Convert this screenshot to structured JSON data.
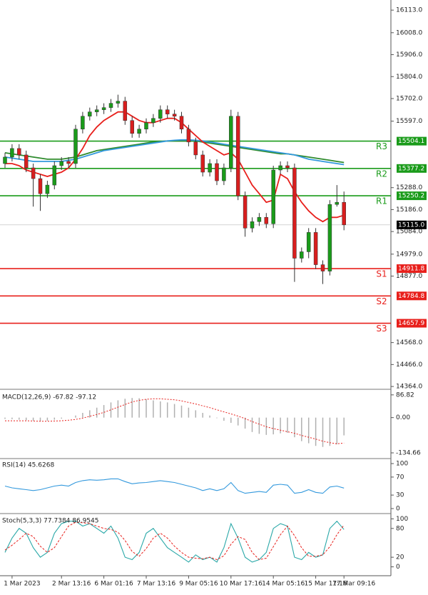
{
  "chart_data": [
    {
      "type": "candlestick",
      "categories": [
        null,
        "1 Mar 2023",
        null,
        null,
        null,
        null,
        null,
        null,
        "2 Mar 13:16",
        null,
        null,
        null,
        null,
        null,
        "6 Mar 01:16",
        null,
        null,
        null,
        null,
        null,
        "7 Mar 13:16",
        null,
        null,
        null,
        null,
        null,
        "9 Mar 05:16",
        null,
        null,
        null,
        null,
        null,
        "10 Mar 17:16",
        null,
        null,
        null,
        null,
        null,
        "14 Mar 05:16",
        null,
        null,
        null,
        null,
        null,
        "15 Mar 17:16",
        null,
        null,
        null,
        "17 Mar 09:16"
      ],
      "open": [
        15400,
        15430,
        15470,
        15440,
        15380,
        15330,
        15260,
        15300,
        15390,
        15410,
        15400,
        15560,
        15620,
        15640,
        15650,
        15660,
        15680,
        15690,
        15600,
        15540,
        15560,
        15590,
        15610,
        15650,
        15630,
        15620,
        15560,
        15500,
        15440,
        15360,
        15400,
        15320,
        15380,
        15620,
        15250,
        15100,
        15130,
        15150,
        15120,
        15370,
        15390,
        15380,
        14960,
        14990,
        15080,
        14930,
        14900,
        15210,
        15220
      ],
      "high": [
        15450,
        15490,
        15490,
        15460,
        15400,
        15350,
        15320,
        15410,
        15430,
        15430,
        15580,
        15640,
        15660,
        15670,
        15680,
        15700,
        15720,
        15710,
        15620,
        15580,
        15610,
        15630,
        15670,
        15670,
        15650,
        15640,
        15580,
        15520,
        15460,
        15420,
        15420,
        15400,
        15650,
        15640,
        15270,
        15150,
        15170,
        15170,
        15390,
        15410,
        15410,
        15400,
        15010,
        15100,
        15100,
        14950,
        15230,
        15300,
        15270
      ],
      "low": [
        15380,
        15410,
        15420,
        15360,
        15200,
        15180,
        15240,
        15280,
        15370,
        15380,
        15380,
        15540,
        15600,
        15620,
        15630,
        15640,
        15660,
        15580,
        15520,
        15520,
        15540,
        15570,
        15590,
        15610,
        15600,
        15540,
        15480,
        15420,
        15340,
        15340,
        15300,
        15300,
        15360,
        15230,
        15060,
        15080,
        15110,
        15100,
        15100,
        15350,
        15360,
        14850,
        14940,
        14960,
        14910,
        14840,
        14880,
        15200,
        15090
      ],
      "close": [
        15430,
        15470,
        15440,
        15380,
        15330,
        15260,
        15300,
        15390,
        15410,
        15400,
        15560,
        15620,
        15640,
        15650,
        15660,
        15680,
        15690,
        15600,
        15540,
        15560,
        15590,
        15610,
        15650,
        15630,
        15620,
        15560,
        15500,
        15440,
        15360,
        15400,
        15320,
        15380,
        15620,
        15250,
        15100,
        15130,
        15150,
        15120,
        15370,
        15390,
        15380,
        14960,
        14990,
        15080,
        14930,
        14900,
        15210,
        15220,
        15115
      ],
      "up_color": "#1a9b1a",
      "down_color": "#d81e1e",
      "moving_averages": [
        {
          "color": "#2e8b2e",
          "values": [
            15450,
            15445,
            15440,
            15435,
            15430,
            15425,
            15420,
            15420,
            15420,
            15425,
            15430,
            15440,
            15450,
            15460,
            15465,
            15470,
            15475,
            15480,
            15485,
            15490,
            15495,
            15500,
            15502,
            15505,
            15505,
            15505,
            15505,
            15505,
            15500,
            15495,
            15490,
            15485,
            15480,
            15475,
            15470,
            15465,
            15460,
            15455,
            15450,
            15445,
            15445,
            15440,
            15435,
            15430,
            15425,
            15420,
            15415,
            15410,
            15405
          ]
        },
        {
          "color": "#3399dd",
          "values": [
            15430,
            15425,
            15420,
            15415,
            15410,
            15410,
            15410,
            15410,
            15410,
            15415,
            15420,
            15430,
            15440,
            15450,
            15460,
            15465,
            15470,
            15475,
            15480,
            15485,
            15490,
            15495,
            15500,
            15505,
            15508,
            15510,
            15510,
            15508,
            15505,
            15500,
            15495,
            15490,
            15485,
            15480,
            15475,
            15470,
            15465,
            15460,
            15455,
            15450,
            15445,
            15440,
            15430,
            15420,
            15415,
            15410,
            15405,
            15400,
            15395
          ]
        },
        {
          "color": "#e8201c",
          "values": [
            15400,
            15400,
            15390,
            15370,
            15360,
            15350,
            15340,
            15350,
            15360,
            15380,
            15420,
            15470,
            15530,
            15570,
            15600,
            15620,
            15640,
            15640,
            15620,
            15600,
            15590,
            15590,
            15600,
            15610,
            15610,
            15590,
            15560,
            15530,
            15500,
            15480,
            15460,
            15440,
            15450,
            15420,
            15360,
            15300,
            15260,
            15220,
            15230,
            15350,
            15330,
            15270,
            15220,
            15180,
            15150,
            15130,
            15150,
            15150,
            15160
          ]
        }
      ],
      "levels": [
        {
          "name": "R3",
          "value": 15504.1,
          "color": "#1a9b1a"
        },
        {
          "name": "R2",
          "value": 15377.2,
          "color": "#1a9b1a"
        },
        {
          "name": "R1",
          "value": 15250.2,
          "color": "#1a9b1a"
        },
        {
          "name": "S1",
          "value": 14911.8,
          "color": "#e8201c"
        },
        {
          "name": "S2",
          "value": 14784.8,
          "color": "#e8201c"
        },
        {
          "name": "S3",
          "value": 14657.9,
          "color": "#e8201c"
        }
      ],
      "last_price": {
        "value": 15115,
        "label": "15115.0"
      },
      "ylim": [
        14351,
        16160
      ],
      "yticks": [
        {
          "value": 16113,
          "label": "16113.0"
        },
        {
          "value": 16008,
          "label": "16008.0"
        },
        {
          "value": 15906,
          "label": "15906.0"
        },
        {
          "value": 15804,
          "label": "15804.0"
        },
        {
          "value": 15702,
          "label": "15702.0"
        },
        {
          "value": 15597,
          "label": "15597.0"
        },
        {
          "value": 15288,
          "label": "15288.0"
        },
        {
          "value": 15186,
          "label": "15186.0"
        },
        {
          "value": 15084,
          "label": "15084.0"
        },
        {
          "value": 14979,
          "label": "14979.0"
        },
        {
          "value": 14877,
          "label": "14877.0"
        },
        {
          "value": 14568,
          "label": "14568.0"
        },
        {
          "value": 14466,
          "label": "14466.0"
        },
        {
          "value": 14364,
          "label": "14364.0"
        }
      ]
    },
    {
      "type": "bar",
      "title": "MACD(12,26,9) -67.82 -97.12",
      "color": "#b0b0b0",
      "signal_color": "#e8201c",
      "values": [
        -5,
        -6,
        -8,
        -10,
        -12,
        -14,
        -12,
        -8,
        -4,
        0,
        8,
        18,
        28,
        38,
        48,
        58,
        66,
        72,
        75,
        74,
        70,
        66,
        62,
        58,
        52,
        46,
        38,
        28,
        18,
        8,
        -2,
        -12,
        -20,
        -30,
        -42,
        -55,
        -62,
        -66,
        -64,
        -60,
        -58,
        -75,
        -90,
        -98,
        -108,
        -112,
        -108,
        -102,
        -67.82
      ],
      "signal_values": [
        -12,
        -12,
        -12,
        -12,
        -13,
        -14,
        -14,
        -13,
        -12,
        -10,
        -7,
        -2,
        5,
        12,
        20,
        30,
        40,
        50,
        60,
        66,
        70,
        72,
        72,
        70,
        68,
        64,
        58,
        52,
        45,
        38,
        30,
        22,
        14,
        6,
        -4,
        -15,
        -25,
        -35,
        -42,
        -48,
        -54,
        -60,
        -68,
        -75,
        -82,
        -90,
        -96,
        -100,
        -97.12
      ],
      "ylim": [
        -151,
        100
      ],
      "yticks": [
        86.82,
        {
          "value": 0,
          "label": "0.00"
        },
        -134.66
      ]
    },
    {
      "type": "line",
      "title": "RSI(14) 45.6268",
      "color": "#3399dd",
      "values": [
        50,
        46,
        44,
        42,
        40,
        42,
        46,
        50,
        52,
        50,
        58,
        62,
        64,
        63,
        64,
        66,
        66,
        60,
        55,
        57,
        58,
        60,
        62,
        60,
        58,
        54,
        50,
        46,
        40,
        44,
        40,
        44,
        58,
        40,
        34,
        36,
        38,
        36,
        52,
        54,
        52,
        34,
        36,
        42,
        36,
        34,
        48,
        50,
        45.6268
      ],
      "ylim": [
        -9.5,
        109.5
      ],
      "yticks": [
        100,
        70,
        30,
        0
      ]
    },
    {
      "type": "line",
      "title": "Stoch(5,3,3) 77.7384 86.9545",
      "color": "#2aa8a8",
      "signal_color": "#e8201c",
      "values": [
        30,
        60,
        80,
        70,
        40,
        20,
        30,
        70,
        90,
        95,
        95,
        85,
        90,
        80,
        70,
        85,
        60,
        20,
        15,
        30,
        70,
        80,
        60,
        40,
        30,
        20,
        10,
        25,
        15,
        20,
        10,
        40,
        90,
        60,
        20,
        10,
        15,
        30,
        80,
        90,
        85,
        20,
        15,
        30,
        20,
        25,
        80,
        95,
        77.7384
      ],
      "signal_values": [
        35,
        45,
        57,
        70,
        63,
        43,
        30,
        40,
        63,
        85,
        93,
        92,
        90,
        85,
        80,
        78,
        72,
        55,
        32,
        22,
        38,
        60,
        70,
        60,
        43,
        30,
        20,
        18,
        17,
        20,
        15,
        23,
        47,
        63,
        57,
        30,
        15,
        18,
        42,
        67,
        85,
        65,
        40,
        22,
        22,
        25,
        42,
        67,
        86.9545
      ],
      "ylim": [
        -17,
        108
      ],
      "yticks": [
        100,
        80,
        20,
        0
      ]
    }
  ]
}
